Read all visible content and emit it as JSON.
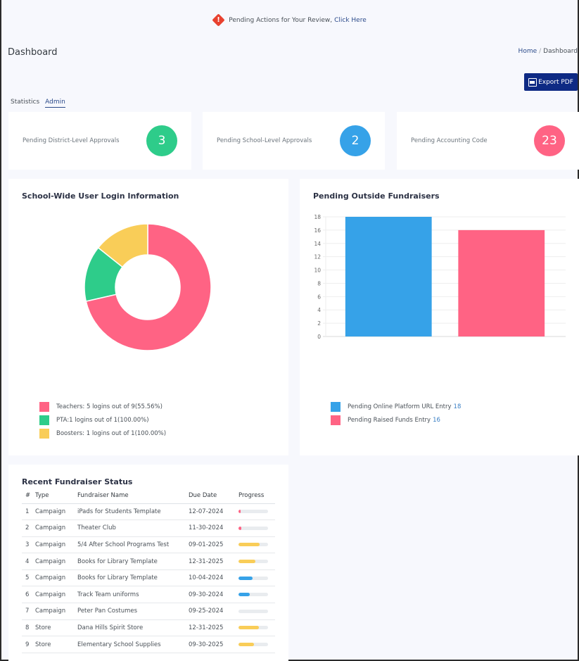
{
  "alert": {
    "icon": "warning-diamond-icon",
    "text": "Pending Actions for Your Review,",
    "link": "Click Here"
  },
  "header": {
    "title": "Dashboard",
    "breadcrumb": [
      "Home",
      "Dashboard"
    ],
    "breadcrumb_sep": "/",
    "export_label": "Export PDF"
  },
  "tabs": [
    {
      "label": "Statistics",
      "active": false
    },
    {
      "label": "Admin",
      "active": true
    }
  ],
  "stats": [
    {
      "label": "Pending District-Level Approvals",
      "value": "3",
      "color": "#2ecc8a"
    },
    {
      "label": "Pending School-Level Approvals",
      "value": "2",
      "color": "#36a2e8"
    },
    {
      "label": "Pending Accounting Code",
      "value": "23",
      "color": "#ff6384"
    }
  ],
  "login_card": {
    "title": "School-Wide User Login Information",
    "legend": [
      {
        "text": "Teachers: 5 logins out of 9(55.56%)",
        "color": "#ff6384"
      },
      {
        "text": "PTA:1 logins out of 1(100.00%)",
        "color": "#2ecc8a"
      },
      {
        "text": "Boosters: 1 logins out of 1(100.00%)",
        "color": "#f9cd58"
      }
    ]
  },
  "fundraisers_card": {
    "title": "Pending Outside Fundraisers",
    "legend": [
      {
        "text": "Pending Online Platform URL Entry",
        "value": "18",
        "color": "#36a2e8"
      },
      {
        "text": "Pending Raised Funds Entry",
        "value": "16",
        "color": "#ff6384"
      }
    ]
  },
  "chart_data": [
    {
      "type": "pie",
      "title": "School-Wide User Login Information",
      "variant": "doughnut",
      "categories": [
        "Teachers",
        "PTA",
        "Boosters"
      ],
      "values": [
        5,
        1,
        1
      ],
      "colors": [
        "#ff6384",
        "#2ecc8a",
        "#f9cd58"
      ]
    },
    {
      "type": "bar",
      "title": "Pending Outside Fundraisers",
      "categories": [
        "Pending Online Platform URL Entry",
        "Pending Raised Funds Entry"
      ],
      "values": [
        18,
        16
      ],
      "colors": [
        "#36a2e8",
        "#ff6384"
      ],
      "ylim": [
        0,
        18
      ],
      "yticks": [
        0,
        2,
        4,
        6,
        8,
        10,
        12,
        14,
        16,
        18
      ],
      "grid": true,
      "xlabel": "",
      "ylabel": ""
    }
  ],
  "recent": {
    "title": "Recent Fundraiser Status",
    "columns": [
      "#",
      "Type",
      "Fundraiser Name",
      "Due Date",
      "Progress"
    ],
    "rows": [
      {
        "num": "1",
        "type": "Campaign",
        "name": "iPads for Students Template",
        "due": "12-07-2024",
        "progress": 8,
        "color": "#ff6384"
      },
      {
        "num": "2",
        "type": "Campaign",
        "name": "Theater Club",
        "due": "11-30-2024",
        "progress": 10,
        "color": "#ff6384"
      },
      {
        "num": "3",
        "type": "Campaign",
        "name": "5/4 After School Programs Test",
        "due": "09-01-2025",
        "progress": 72,
        "color": "#f9cd58"
      },
      {
        "num": "4",
        "type": "Campaign",
        "name": "Books for Library Template",
        "due": "12-31-2025",
        "progress": 56,
        "color": "#f9cd58"
      },
      {
        "num": "5",
        "type": "Campaign",
        "name": "Books for Library Template",
        "due": "10-04-2024",
        "progress": 47,
        "color": "#36a2e8"
      },
      {
        "num": "6",
        "type": "Campaign",
        "name": "Track Team uniforms",
        "due": "09-30-2024",
        "progress": 38,
        "color": "#36a2e8"
      },
      {
        "num": "7",
        "type": "Campaign",
        "name": "Peter Pan Costumes",
        "due": "09-25-2024",
        "progress": 0,
        "color": "#e9ecef"
      },
      {
        "num": "8",
        "type": "Store",
        "name": "Dana Hills Spirit Store",
        "due": "12-31-2025",
        "progress": 70,
        "color": "#f9cd58"
      },
      {
        "num": "9",
        "type": "Store",
        "name": "Elementary School Supplies",
        "due": "09-30-2025",
        "progress": 53,
        "color": "#f9cd58"
      }
    ]
  }
}
